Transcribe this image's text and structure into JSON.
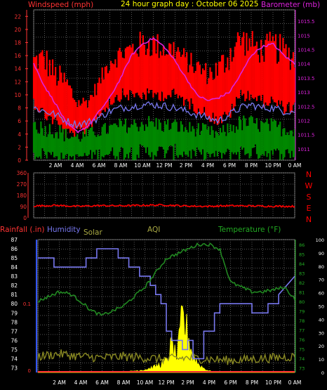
{
  "top_chart": {
    "header": {
      "left_label": "Windspeed (mph)",
      "title": "24 hour graph day : October 06 2025",
      "right_label": "Barometer (mb)"
    },
    "colors": {
      "windspeed": "#ff0000",
      "gust": "#ff0000",
      "barometer": "#dd22dd",
      "wind_avg": "#7777ee",
      "wind_low": "#008800",
      "left_axis": "#ff3333",
      "right_axis": "#dd22dd",
      "title": "#ffff00"
    }
  },
  "x_tick_labels": [
    "2 AM",
    "4 AM",
    "6 AM",
    "8 AM",
    "10 AM",
    "12 PM",
    "2 PM",
    "4 PM",
    "6 PM",
    "8 PM",
    "10 PM",
    "0 AM"
  ],
  "mid_chart": {
    "direction_letters": [
      "N",
      "W",
      "S",
      "E",
      "N"
    ],
    "colors": {
      "direction": "#ff0000",
      "axis": "#ff3333",
      "letters": "#ff0000"
    }
  },
  "bottom_chart": {
    "header": {
      "rainfall_label": "Rainfall (.in)",
      "humidity_label": "Humidity",
      "solar_label": "Solar",
      "aqi_label": "AQI",
      "temperature_label": "Temperature (°F)"
    },
    "colors": {
      "rain_axis": "#ff3333",
      "humidity": "#7777ee",
      "solar": "#ffff00",
      "aqi": "#888822",
      "temperature": "#228822",
      "temp_axis": "#22aa22",
      "left_axis": "#ffffff",
      "right_axis": "#ffffff"
    }
  },
  "chart_data": [
    {
      "type": "line",
      "title": "24 hour graph day : October 06 2025",
      "ylabel": "Windspeed (mph)",
      "y2label": "Barometer (mb)",
      "x_tick_labels": [
        "2 AM",
        "4 AM",
        "6 AM",
        "8 AM",
        "10 AM",
        "12 PM",
        "2 PM",
        "4 PM",
        "6 PM",
        "8 PM",
        "10 PM",
        "0 AM"
      ],
      "ylim": [
        0,
        23
      ],
      "y_ticks": [
        0,
        2,
        4,
        6,
        8,
        10,
        12,
        14,
        16,
        18,
        20,
        22
      ],
      "y2lim": [
        1010.6,
        1015.9
      ],
      "y2_ticks": [
        1011,
        1011.5,
        1012,
        1012.5,
        1013,
        1013.5,
        1014,
        1014.5,
        1015,
        1015.5
      ],
      "grid": true,
      "series": [
        {
          "name": "",
          "role": "gust",
          "x": [
            0,
            1,
            2,
            3,
            4,
            5,
            6,
            7,
            8,
            9,
            10,
            11,
            12,
            13,
            14,
            15,
            16,
            17,
            18,
            19,
            20,
            21,
            22,
            23,
            24
          ],
          "min": [
            10,
            8,
            7,
            5,
            5,
            6,
            8,
            10,
            11,
            11,
            11,
            11,
            11,
            11,
            10,
            9,
            8,
            7,
            8,
            11,
            11,
            10,
            10,
            9,
            9
          ],
          "max": [
            17,
            18,
            15,
            14,
            10,
            10,
            13,
            17,
            18,
            19,
            20,
            20,
            19,
            19,
            17,
            16,
            15,
            16,
            19,
            21,
            20,
            19,
            20,
            19,
            18
          ]
        },
        {
          "name": "",
          "role": "average",
          "x": [
            0,
            1,
            2,
            3,
            4,
            5,
            6,
            7,
            8,
            9,
            10,
            11,
            12,
            13,
            14,
            15,
            16,
            17,
            18,
            19,
            20,
            21,
            22,
            23,
            24
          ],
          "values": [
            8,
            7.5,
            7,
            6,
            5.5,
            5.8,
            6.5,
            7.5,
            8,
            8.2,
            8.5,
            8.5,
            8.3,
            8,
            7.5,
            7,
            6.5,
            6,
            7,
            8,
            8.5,
            8,
            8,
            7.5,
            7.5
          ]
        },
        {
          "name": "",
          "role": "low",
          "x": [
            0,
            1,
            2,
            3,
            4,
            5,
            6,
            7,
            8,
            9,
            10,
            11,
            12,
            13,
            14,
            15,
            16,
            17,
            18,
            19,
            20,
            21,
            22,
            23,
            24
          ],
          "min": [
            2,
            2,
            1.5,
            1,
            1,
            1.5,
            2,
            2,
            2.5,
            2.5,
            2.5,
            2.5,
            2.5,
            2.5,
            2,
            2,
            1.5,
            1.5,
            2,
            2.5,
            2.5,
            2.5,
            2,
            2,
            2
          ],
          "max": [
            7,
            6,
            6,
            5,
            4.5,
            5,
            5.5,
            6,
            6.5,
            6.5,
            7,
            7,
            6.5,
            6.5,
            6,
            6,
            5.5,
            5,
            6,
            7,
            7,
            6.5,
            6.5,
            6,
            6
          ]
        },
        {
          "name": "",
          "role": "barometer",
          "axis": "right",
          "x": [
            0,
            1,
            2,
            3,
            4,
            5,
            6,
            7,
            8,
            9,
            10,
            11,
            12,
            13,
            14,
            15,
            16,
            17,
            18,
            19,
            20,
            21,
            22,
            23,
            24
          ],
          "values": [
            1014,
            1013.2,
            1012.6,
            1011.9,
            1011.6,
            1011.8,
            1012.3,
            1012.8,
            1013.5,
            1014.3,
            1014.7,
            1014.9,
            1014.6,
            1014.1,
            1013.5,
            1012.9,
            1012.7,
            1012.8,
            1013,
            1013.6,
            1014.3,
            1014.6,
            1014.7,
            1014.3,
            1014
          ]
        }
      ]
    },
    {
      "type": "line",
      "ylim": [
        0,
        360
      ],
      "y_ticks": [
        0,
        90,
        180,
        270,
        360
      ],
      "x_tick_labels": [
        "2 AM",
        "4 AM",
        "6 AM",
        "8 AM",
        "10 AM",
        "12 PM",
        "2 PM",
        "4 PM",
        "6 PM",
        "8 PM",
        "10 PM",
        "0 AM"
      ],
      "grid": true,
      "series": [
        {
          "name": "",
          "role": "wind_direction",
          "x": [
            0,
            2,
            4,
            6,
            8,
            10,
            12,
            14,
            16,
            18,
            20,
            22,
            24
          ],
          "values": [
            95,
            100,
            92,
            98,
            96,
            100,
            103,
            95,
            92,
            97,
            95,
            93,
            92
          ]
        }
      ]
    },
    {
      "type": "line",
      "ylabel": "Rainfall (.in)",
      "x_tick_labels": [
        "2 AM",
        "4 AM",
        "6 AM",
        "8 AM",
        "10 AM",
        "12 PM",
        "2 PM",
        "4 PM",
        "6 PM",
        "8 PM",
        "10 PM",
        "0 AM"
      ],
      "rain_ticks": [
        "0",
        "0.1"
      ],
      "humidity_lim": [
        72.5,
        87
      ],
      "humidity_ticks": [
        73,
        74,
        75,
        76,
        77,
        78,
        79,
        80,
        81,
        82,
        83,
        84,
        85,
        86,
        87
      ],
      "temperature_lim": [
        72.5,
        86.5
      ],
      "temperature_ticks": [
        73,
        74,
        75,
        76,
        77,
        78,
        79,
        80,
        81,
        82,
        83,
        84,
        85,
        86
      ],
      "aqi_lim": [
        0,
        100
      ],
      "aqi_ticks": [
        0,
        10,
        20,
        30,
        40,
        50,
        60,
        70,
        80,
        90,
        100
      ],
      "grid": true,
      "series": [
        {
          "name": "Humidity",
          "role": "humidity",
          "x": [
            0,
            1.5,
            1.5,
            4.5,
            4.5,
            5.5,
            5.5,
            7.5,
            7.5,
            8.5,
            8.5,
            9.5,
            9.5,
            10.5,
            10.5,
            11,
            11,
            11.5,
            11.5,
            12,
            12,
            12.5,
            12.5,
            13.5,
            13.5,
            14,
            14,
            14.5,
            14.5,
            15.5,
            15.5,
            16.5,
            16.5,
            17,
            17,
            18,
            18,
            18.5,
            18.5,
            20,
            20,
            21.5,
            21.5,
            22.5,
            22.5,
            24
          ],
          "values": [
            85,
            85,
            84,
            84,
            85,
            85,
            86,
            86,
            85,
            85,
            84,
            84,
            83,
            83,
            82,
            82,
            81,
            81,
            80,
            80,
            77,
            77,
            76,
            76,
            75,
            75,
            76,
            76,
            74,
            74,
            77,
            77,
            79,
            79,
            80,
            80,
            80,
            80,
            80,
            80,
            79,
            79,
            80,
            80,
            81,
            83
          ]
        },
        {
          "name": "Temperature (°F)",
          "role": "temperature",
          "x": [
            0,
            1,
            2,
            3,
            4,
            5,
            6,
            7,
            8,
            9,
            10,
            11,
            12,
            13,
            14,
            15,
            16,
            17,
            18,
            19,
            20,
            21,
            22,
            23,
            24
          ],
          "values": [
            80,
            80.5,
            81,
            80.8,
            80,
            79,
            78.5,
            79,
            79.5,
            80.5,
            81.5,
            83,
            84.5,
            85,
            85.5,
            86,
            86,
            85.5,
            82,
            81.5,
            81,
            81,
            81.2,
            81.5,
            80.3
          ]
        },
        {
          "name": "Solar",
          "role": "solar",
          "x": [
            0,
            7,
            8,
            9,
            10,
            11,
            12,
            12.5,
            13,
            13.5,
            14,
            14.5,
            15,
            15.5,
            16,
            17,
            18,
            24
          ],
          "values": [
            0,
            0,
            0.2,
            1,
            2,
            4,
            8,
            20,
            10,
            40,
            28,
            12,
            6,
            3,
            1,
            0.3,
            0,
            0
          ]
        },
        {
          "name": "AQI",
          "role": "aqi",
          "x": [
            0,
            2,
            4,
            6,
            8,
            10,
            12,
            14,
            16,
            18,
            20,
            22,
            24
          ],
          "values": [
            12,
            14,
            12,
            11,
            12,
            11,
            10,
            11,
            10,
            9,
            10,
            11,
            12
          ]
        },
        {
          "name": "Rainfall (.in)",
          "role": "rainfall",
          "x": [
            0,
            24
          ],
          "values": [
            0,
            0
          ]
        }
      ]
    }
  ]
}
